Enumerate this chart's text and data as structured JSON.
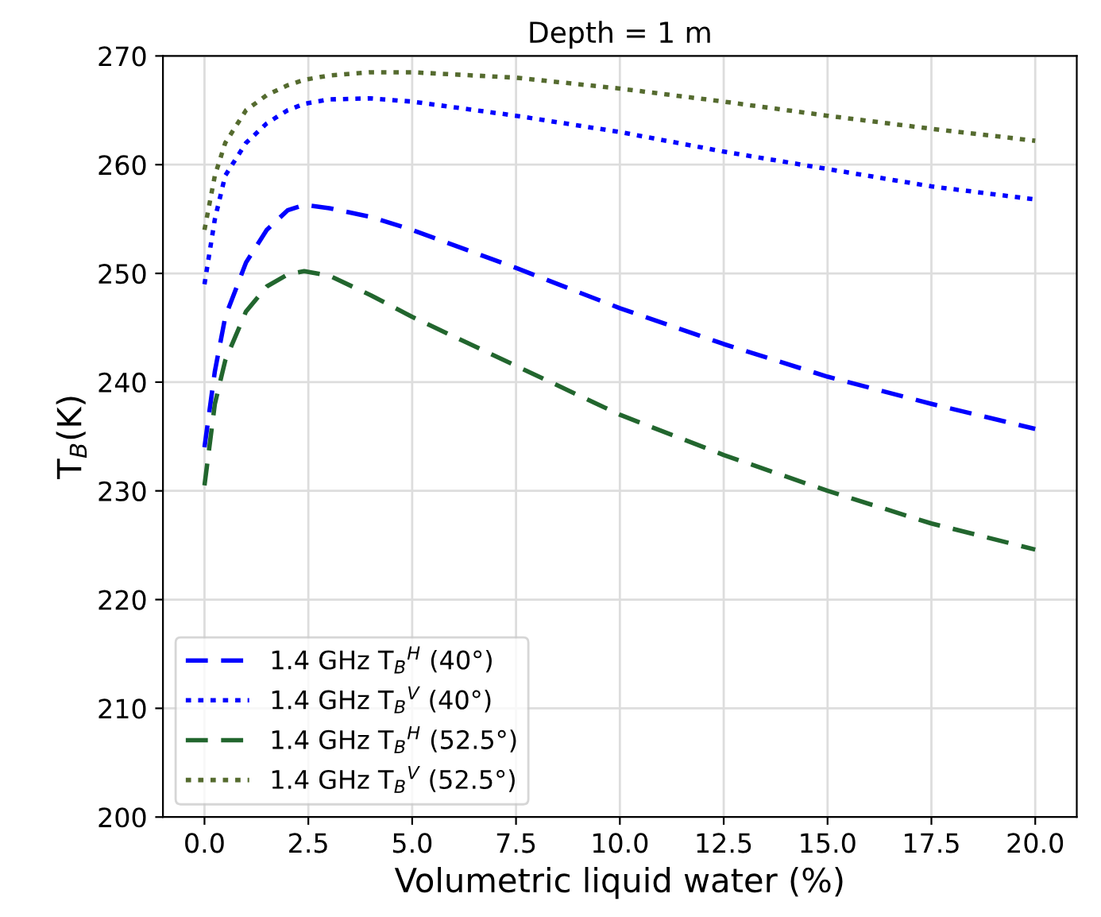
{
  "chart_data": {
    "type": "line",
    "title": "Depth = 1 m",
    "xlabel": "Volumetric liquid water (%)",
    "ylabel": "T$_{B}$(K)",
    "xlim": [
      -1,
      21
    ],
    "ylim": [
      200,
      270
    ],
    "xticks": [
      {
        "value": 0,
        "label": "0.0"
      },
      {
        "value": 2.5,
        "label": "2.5"
      },
      {
        "value": 5,
        "label": "5.0"
      },
      {
        "value": 7.5,
        "label": "7.5"
      },
      {
        "value": 10,
        "label": "10.0"
      },
      {
        "value": 12.5,
        "label": "12.5"
      },
      {
        "value": 15,
        "label": "15.0"
      },
      {
        "value": 17.5,
        "label": "17.5"
      },
      {
        "value": 20,
        "label": "20.0"
      }
    ],
    "yticks": [
      200,
      210,
      220,
      230,
      240,
      250,
      260,
      270
    ],
    "grid": true,
    "legend": "bottom left",
    "x": [
      0,
      0.25,
      0.5,
      1,
      1.5,
      2,
      2.4,
      3,
      4,
      5,
      7.5,
      10,
      12.5,
      15,
      17.5,
      20
    ],
    "series": [
      {
        "name": "1.4 GHz T$_{B}$$^{H}$ (40°)",
        "color": "#0000ff",
        "line_style": "dashed",
        "values": [
          234,
          241,
          246,
          251,
          254,
          255.8,
          256.3,
          256,
          255.2,
          254,
          250.5,
          246.8,
          243.5,
          240.5,
          238,
          235.7
        ]
      },
      {
        "name": "1.4 GHz T$_{B}$$^{V}$ (40°)",
        "color": "#0000ff",
        "line_style": "dotted",
        "values": [
          249,
          255,
          259,
          262,
          263.8,
          265,
          265.6,
          266,
          266.1,
          265.8,
          264.5,
          263,
          261.2,
          259.6,
          258,
          256.8
        ]
      },
      {
        "name": "1.4 GHz T$_{B}$$^{H}$ (52.5°)",
        "color": "#22662e",
        "line_style": "dashed",
        "values": [
          230.5,
          238,
          242,
          246.5,
          248.8,
          249.9,
          250.2,
          249.8,
          248,
          246,
          241.5,
          237,
          233.3,
          230,
          227,
          224.6
        ]
      },
      {
        "name": "1.4 GHz T$_{B}$$^{V}$ (52.5°)",
        "color": "#556b2f",
        "line_style": "dotted",
        "values": [
          254,
          259,
          262,
          265,
          266.4,
          267.3,
          267.8,
          268.2,
          268.5,
          268.5,
          268,
          267,
          265.8,
          264.5,
          263.3,
          262.2
        ]
      }
    ]
  }
}
